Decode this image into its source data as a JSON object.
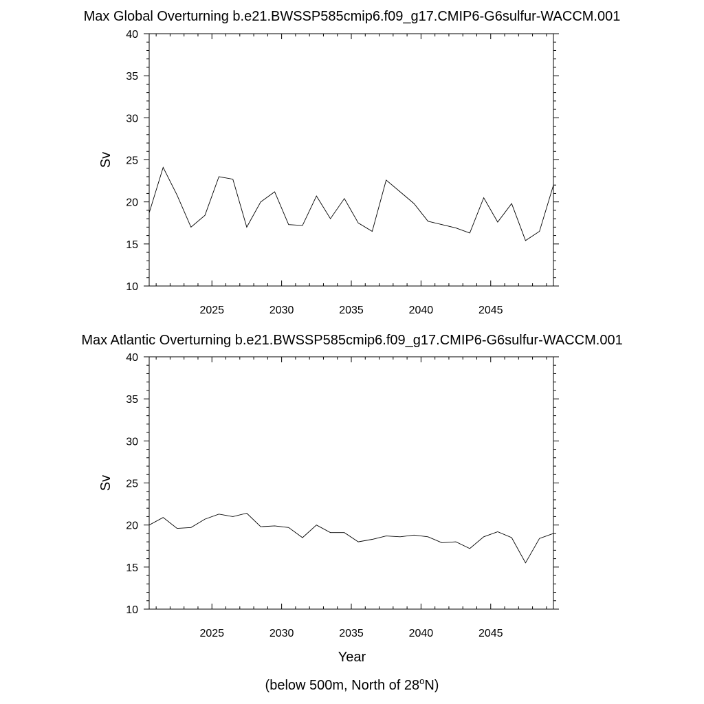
{
  "chart_data": [
    {
      "type": "line",
      "title": "Max Global Overturning b.e21.BWSSP585cmip6.f09_g17.CMIP6-G6sulfur-WACCM.001",
      "xlabel": "",
      "ylabel": "Sv",
      "xlim": [
        2020.5,
        2049.5
      ],
      "ylim": [
        10,
        40
      ],
      "xticks": [
        "2025",
        "2030",
        "2035",
        "2040",
        "2045"
      ],
      "yticks": [
        "10",
        "15",
        "20",
        "25",
        "30",
        "35",
        "40"
      ],
      "grid": false,
      "x": [
        2020.5,
        2021.5,
        2022.5,
        2023.5,
        2024.5,
        2025.5,
        2026.5,
        2027.5,
        2028.5,
        2029.5,
        2030.5,
        2031.5,
        2032.5,
        2033.5,
        2034.5,
        2035.5,
        2036.5,
        2037.5,
        2038.5,
        2039.5,
        2040.5,
        2041.5,
        2042.5,
        2043.5,
        2044.5,
        2045.5,
        2046.5,
        2047.5,
        2048.5,
        2049.5
      ],
      "series": [
        {
          "values": [
            18.7,
            24.1,
            20.8,
            17.0,
            18.4,
            23.0,
            22.7,
            17.0,
            20.0,
            21.2,
            17.3,
            17.2,
            20.7,
            18.0,
            20.4,
            17.5,
            16.5,
            22.6,
            21.2,
            19.8,
            17.7,
            17.3,
            16.9,
            16.3,
            20.5,
            17.6,
            19.8,
            15.4,
            16.5,
            22.0
          ]
        }
      ]
    },
    {
      "type": "line",
      "title": "Max Atlantic Overturning b.e21.BWSSP585cmip6.f09_g17.CMIP6-G6sulfur-WACCM.001",
      "xlabel": "Year",
      "ylabel": "Sv",
      "xlim": [
        2020.5,
        2049.5
      ],
      "ylim": [
        10,
        40
      ],
      "xticks": [
        "2025",
        "2030",
        "2035",
        "2040",
        "2045"
      ],
      "yticks": [
        "10",
        "15",
        "20",
        "25",
        "30",
        "35",
        "40"
      ],
      "grid": false,
      "x": [
        2020.5,
        2021.5,
        2022.5,
        2023.5,
        2024.5,
        2025.5,
        2026.5,
        2027.5,
        2028.5,
        2029.5,
        2030.5,
        2031.5,
        2032.5,
        2033.5,
        2034.5,
        2035.5,
        2036.5,
        2037.5,
        2038.5,
        2039.5,
        2040.5,
        2041.5,
        2042.5,
        2043.5,
        2044.5,
        2045.5,
        2046.5,
        2047.5,
        2048.5,
        2049.5
      ],
      "series": [
        {
          "values": [
            20.0,
            20.9,
            19.6,
            19.7,
            20.7,
            21.3,
            21.0,
            21.4,
            19.8,
            19.9,
            19.7,
            18.5,
            20.0,
            19.1,
            19.1,
            18.0,
            18.3,
            18.7,
            18.6,
            18.8,
            18.6,
            17.9,
            18.0,
            17.2,
            18.6,
            19.2,
            18.5,
            15.5,
            18.4,
            19.0
          ]
        }
      ]
    }
  ],
  "footnote": {
    "prefix": "(below 500m, North of 28",
    "superscript": "o",
    "suffix": "N)"
  }
}
